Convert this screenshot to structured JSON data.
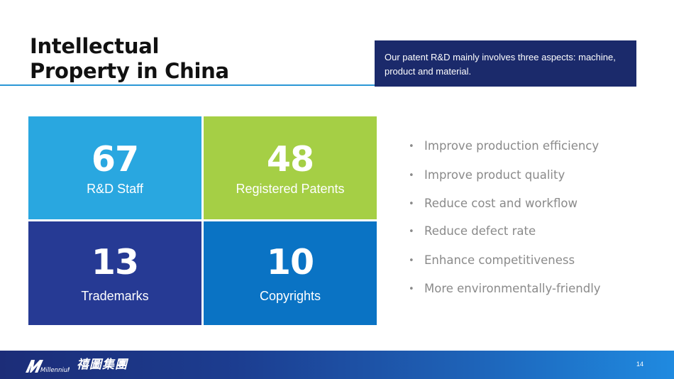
{
  "slide": {
    "title_line1": "Intellectual",
    "title_line2": "Property in China",
    "callout_text": "Our patent R&D mainly involves three aspects: machine, product and material.",
    "page_number": "14"
  },
  "colors": {
    "tile_staff": "#29a7e0",
    "tile_patents": "#a5cf45",
    "tile_trademarks": "#263a94",
    "tile_copyrights": "#0a73c4",
    "callout_bg": "#1b2a6b",
    "accent_rule": "#2a97d6"
  },
  "stats": [
    {
      "value": "67",
      "label": "R&D Staff"
    },
    {
      "value": "48",
      "label": "Registered Patents"
    },
    {
      "value": "13",
      "label": "Trademarks"
    },
    {
      "value": "10",
      "label": "Copyrights"
    }
  ],
  "bullets": [
    "Improve production efficiency",
    "Improve product quality",
    "Reduce cost and workflow",
    "Reduce defect rate",
    "Enhance competitiveness",
    "More environmentally-friendly"
  ],
  "bullet_symbol": "•",
  "footer": {
    "logo_icon": "millennium-logo-icon",
    "logo_text": "MillenniuM",
    "company_name_cn": "禧圖集團"
  }
}
